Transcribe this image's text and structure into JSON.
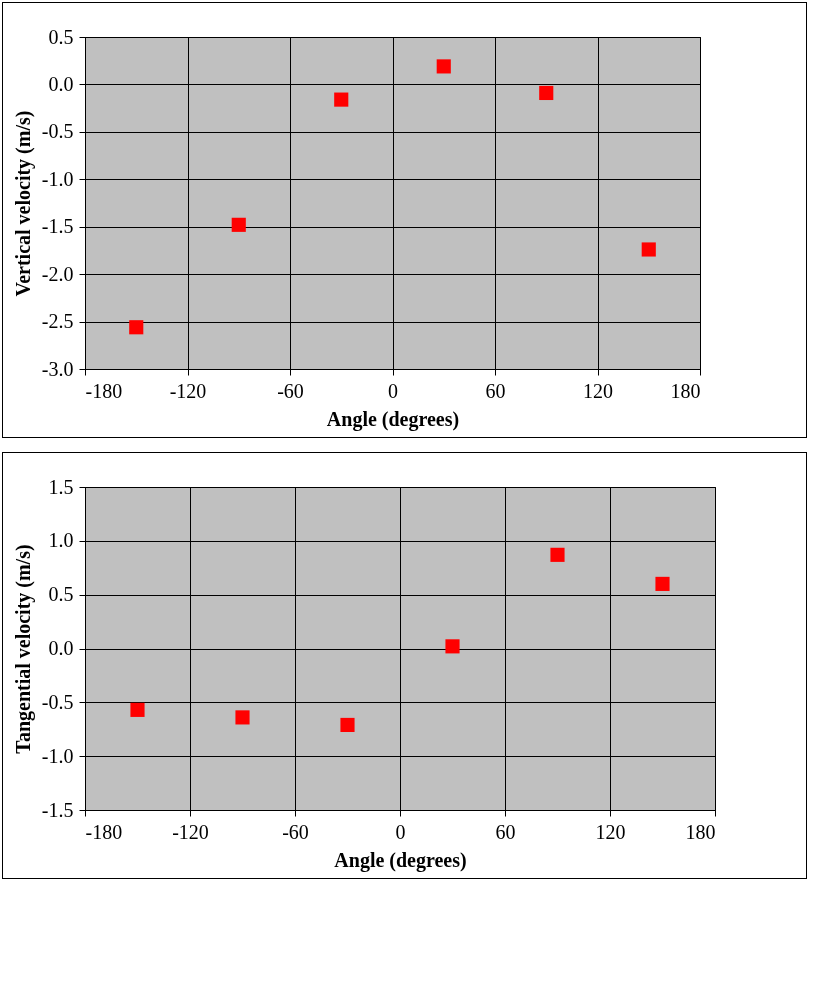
{
  "chart_data": [
    {
      "type": "scatter",
      "xlabel": "Angle (degrees)",
      "ylabel": "Vertical velocity (m/s)",
      "x": [
        -150,
        -90,
        -30,
        30,
        90,
        150
      ],
      "series": [
        {
          "color": "#ff0000",
          "values": [
            -2.56,
            -1.48,
            -0.16,
            0.19,
            -0.09,
            -1.74
          ]
        }
      ],
      "xlim": [
        -180,
        180
      ],
      "xticks": [
        -180,
        -120,
        -60,
        0,
        60,
        120,
        180
      ],
      "ylim": [
        -3,
        0.5
      ],
      "yticks": [
        {
          "value": -3,
          "label": "-3.0"
        },
        -2.5,
        {
          "value": -2,
          "label": "-2.0"
        },
        -1.5,
        {
          "value": -1,
          "label": "-1.0"
        },
        -0.5,
        {
          "value": 0,
          "label": "0.0"
        },
        0.5
      ],
      "grid": true,
      "marker": "square"
    },
    {
      "type": "scatter",
      "xlabel": "Angle (degrees)",
      "ylabel": "Tangential velocity (m/s)",
      "x": [
        -150,
        -90,
        -30,
        30,
        90,
        150
      ],
      "series": [
        {
          "color": "#ff0000",
          "values": [
            -0.57,
            -0.64,
            -0.71,
            0.02,
            0.87,
            0.6
          ]
        }
      ],
      "xlim": [
        -180,
        180
      ],
      "xticks": [
        -180,
        -120,
        -60,
        0,
        60,
        120,
        180
      ],
      "ylim": [
        -1.5,
        1.5
      ],
      "yticks": [
        -1.5,
        {
          "value": -1,
          "label": "-1.0"
        },
        -0.5,
        {
          "value": 0,
          "label": "0.0"
        },
        0.5,
        {
          "value": 1,
          "label": "1.0"
        },
        1.5
      ],
      "grid": true,
      "marker": "square"
    }
  ]
}
